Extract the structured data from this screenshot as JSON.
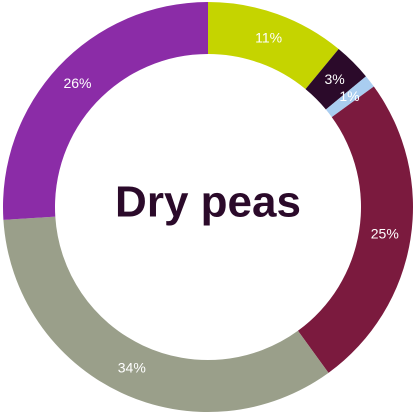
{
  "chart_data": {
    "type": "donut",
    "title": "Dry peas",
    "values": [
      11,
      3,
      1,
      25,
      34,
      26
    ],
    "value_labels": [
      "11%",
      "3%",
      "1%",
      "25%",
      "34%",
      "26%"
    ],
    "colors": [
      "#c5d400",
      "#2b0a2a",
      "#a9cdf0",
      "#7b1a3e",
      "#9a9f8a",
      "#8b2ca7"
    ]
  }
}
